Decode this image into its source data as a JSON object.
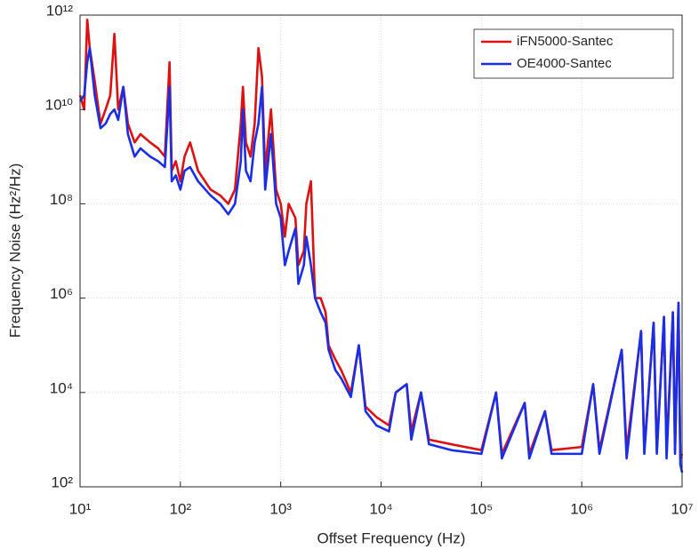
{
  "chart_data": {
    "type": "line",
    "xlabel": "Offset Frequency (Hz)",
    "ylabel": "Frequency Noise (Hz²/Hz)",
    "xscale": "log",
    "yscale": "log",
    "grid": true,
    "legend": "upper right",
    "xlim": [
      10,
      10000000
    ],
    "ylim": [
      100,
      1000000000000
    ],
    "xticks": [
      {
        "value": 10,
        "label": "10¹"
      },
      {
        "value": 100,
        "label": "10²"
      },
      {
        "value": 1000,
        "label": "10³"
      },
      {
        "value": 10000,
        "label": "10⁴"
      },
      {
        "value": 100000,
        "label": "10⁵"
      },
      {
        "value": 1000000,
        "label": "10⁶"
      },
      {
        "value": 10000000,
        "label": "10⁷"
      }
    ],
    "yticks": [
      {
        "value": 100,
        "label": "10²"
      },
      {
        "value": 10000,
        "label": "10⁴"
      },
      {
        "value": 1000000,
        "label": "10⁶"
      },
      {
        "value": 100000000,
        "label": "10⁸"
      },
      {
        "value": 10000000000,
        "label": "10¹⁰"
      },
      {
        "value": 1000000000000,
        "label": "10¹²"
      }
    ],
    "x": [
      10,
      11,
      11.8,
      12.5,
      14,
      16,
      18,
      20,
      22,
      24,
      27,
      30,
      35,
      40,
      50,
      60,
      70,
      78,
      82,
      90,
      100,
      110,
      125,
      150,
      200,
      250,
      300,
      350,
      400,
      420,
      450,
      500,
      550,
      600,
      650,
      700,
      800,
      900,
      1000,
      1100,
      1200,
      1400,
      1500,
      1700,
      1800,
      2000,
      2200,
      2500,
      2800,
      3000,
      3500,
      4000,
      5000,
      6000,
      7000,
      9000,
      12000,
      14000,
      18000,
      20000,
      25000,
      30000,
      50000,
      100000,
      140000,
      160000,
      270000,
      300000,
      430000,
      500000,
      1000000,
      1300000,
      1500000,
      2500000,
      2800000,
      3900000,
      4200000,
      5200000,
      5600000,
      6600000,
      7000000,
      8100000,
      8500000,
      9200000,
      9600000,
      10000000
    ],
    "series": [
      {
        "name": "iFN5000-Santec",
        "color": "#dd1111",
        "values": [
          20000000000.0,
          10000000000.0,
          800000000000.0,
          200000000000.0,
          40000000000.0,
          5000000000.0,
          10000000000.0,
          20000000000.0,
          400000000000.0,
          10000000000.0,
          30000000000.0,
          5000000000.0,
          2000000000.0,
          3000000000.0,
          2000000000.0,
          1500000000.0,
          1000000000.0,
          100000000000.0,
          500000000.0,
          800000000.0,
          300000000.0,
          1000000000.0,
          2000000000.0,
          500000000.0,
          200000000.0,
          150000000.0,
          100000000.0,
          200000000.0,
          5000000000.0,
          30000000000.0,
          2000000000.0,
          1000000000.0,
          5000000000.0,
          200000000000.0,
          50000000000.0,
          500000000.0,
          10000000000.0,
          200000000.0,
          100000000.0,
          20000000.0,
          100000000.0,
          50000000.0,
          5000000.0,
          10000000.0,
          100000000.0,
          300000000.0,
          1000000.0,
          1000000.0,
          500000.0,
          100000.0,
          50000.0,
          30000.0,
          10000.0,
          100000.0,
          5000.0,
          3000.0,
          2000.0,
          10000.0,
          15000.0,
          1500.0,
          10000.0,
          1000.0,
          800.0,
          600.0,
          10000.0,
          500.0,
          6000.0,
          500.0,
          4000.0,
          600.0,
          700.0,
          15000.0,
          600.0,
          80000.0,
          600.0,
          200000.0,
          600.0,
          300000.0,
          600.0,
          400000.0,
          600.0,
          500000.0,
          600.0,
          800000.0,
          400.0,
          500.0
        ]
      },
      {
        "name": "OE4000-Santec",
        "color": "#1a2ee6",
        "values": [
          15000000000.0,
          20000000000.0,
          100000000000.0,
          200000000000.0,
          20000000000.0,
          4000000000.0,
          5000000000.0,
          8000000000.0,
          10000000000.0,
          6000000000.0,
          30000000000.0,
          3000000000.0,
          1000000000.0,
          1500000000.0,
          1000000000.0,
          800000000.0,
          600000000.0,
          30000000000.0,
          300000000.0,
          400000000.0,
          200000000.0,
          500000000.0,
          600000000.0,
          300000000.0,
          150000000.0,
          100000000.0,
          60000000.0,
          100000000.0,
          800000000.0,
          10000000000.0,
          500000000.0,
          300000000.0,
          2000000000.0,
          5000000000.0,
          30000000000.0,
          200000000.0,
          3000000000.0,
          100000000.0,
          50000000.0,
          5000000.0,
          10000000.0,
          30000000.0,
          2000000.0,
          5000000.0,
          20000000.0,
          5000000.0,
          1000000.0,
          500000.0,
          300000.0,
          80000.0,
          30000.0,
          20000.0,
          8000.0,
          100000.0,
          4000.0,
          2000.0,
          1500.0,
          10000.0,
          15000.0,
          1000.0,
          10000.0,
          800.0,
          600.0,
          500.0,
          10000.0,
          400.0,
          6000.0,
          400.0,
          4000.0,
          500.0,
          500.0,
          15000.0,
          500.0,
          80000.0,
          400.0,
          200000.0,
          500.0,
          300000.0,
          500.0,
          400000.0,
          400.0,
          500000.0,
          500.0,
          800000.0,
          300.0,
          200.0
        ]
      }
    ]
  }
}
